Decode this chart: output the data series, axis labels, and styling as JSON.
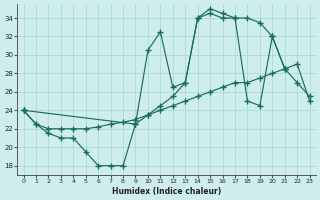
{
  "xlabel": "Humidex (Indice chaleur)",
  "bg_color": "#ceeeed",
  "grid_color": "#aed8d5",
  "line_color": "#1a6b60",
  "xlim": [
    -0.5,
    23.5
  ],
  "ylim": [
    17.0,
    35.5
  ],
  "xticks": [
    0,
    1,
    2,
    3,
    4,
    5,
    6,
    7,
    8,
    9,
    10,
    11,
    12,
    13,
    14,
    15,
    16,
    17,
    18,
    19,
    20,
    21,
    22,
    23
  ],
  "yticks": [
    18,
    20,
    22,
    24,
    26,
    28,
    30,
    32,
    34
  ],
  "curve1_x": [
    0,
    1,
    2,
    3,
    4,
    5,
    6,
    7,
    8,
    9,
    10,
    11,
    12,
    13,
    14,
    15,
    16,
    17,
    18,
    19,
    20,
    21
  ],
  "curve1_y": [
    24,
    22.5,
    21.5,
    21.0,
    21.0,
    19.5,
    18.0,
    18.0,
    18.0,
    22.5,
    30.5,
    32.5,
    26.5,
    27.0,
    34.0,
    35.0,
    34.5,
    34.0,
    34.0,
    33.5,
    32.0,
    28.5
  ],
  "curve2_x": [
    0,
    1,
    2,
    3,
    4,
    5,
    6,
    7,
    8,
    9,
    10,
    11,
    12,
    13,
    14,
    15,
    16,
    17,
    18,
    19,
    20,
    21,
    22,
    23
  ],
  "curve2_y": [
    24.0,
    22.5,
    22.0,
    22.0,
    22.0,
    22.0,
    22.2,
    22.5,
    22.7,
    23.0,
    23.5,
    24.0,
    24.5,
    25.0,
    25.5,
    26.0,
    26.5,
    27.0,
    27.0,
    27.5,
    28.0,
    28.5,
    29.0,
    25.0
  ],
  "curve3_x": [
    0,
    9,
    10,
    11,
    12,
    13,
    14,
    15,
    16,
    17,
    18,
    19,
    20,
    21,
    22,
    23
  ],
  "curve3_y": [
    24.0,
    22.5,
    23.5,
    24.5,
    25.5,
    27.0,
    34.0,
    34.5,
    34.0,
    34.0,
    25.0,
    24.5,
    32.0,
    28.5,
    27.0,
    25.5
  ]
}
